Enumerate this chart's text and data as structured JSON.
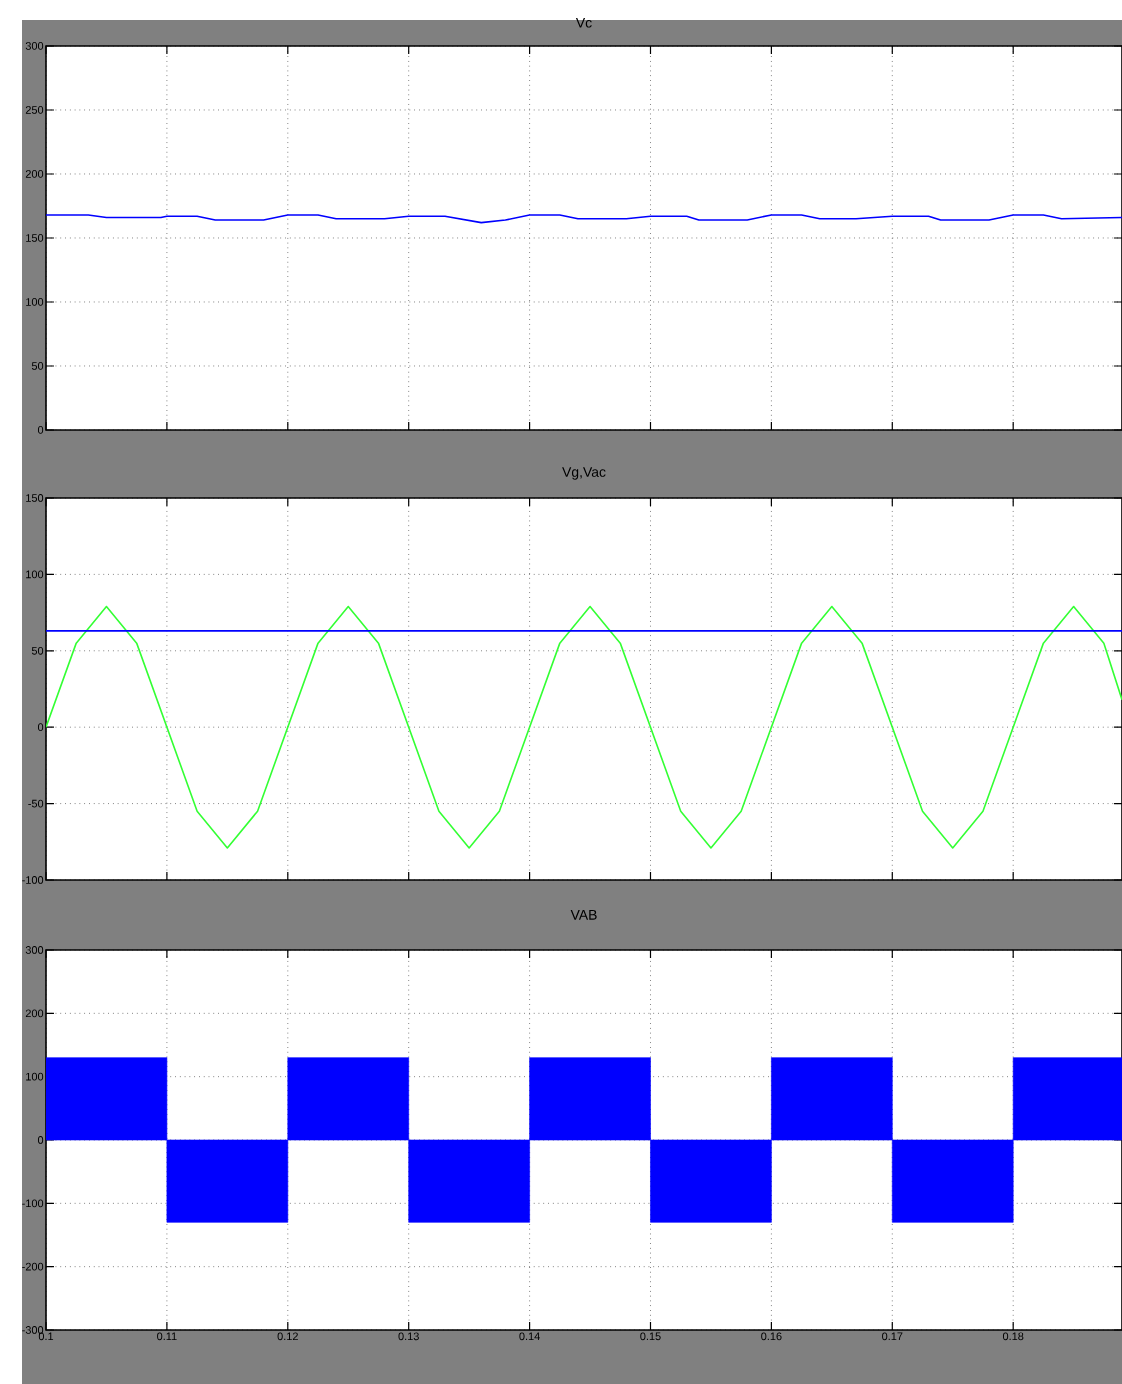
{
  "chart_data": [
    {
      "type": "line",
      "title": "Vc",
      "xlim": [
        0.1,
        0.189
      ],
      "xticks": [
        0.1,
        0.11,
        0.12,
        0.13,
        0.14,
        0.15,
        0.16,
        0.17,
        0.18
      ],
      "ylim": [
        0,
        300
      ],
      "yticks": [
        0,
        50,
        100,
        150,
        200,
        250,
        300
      ],
      "grid": true,
      "tick_labels": "y",
      "series": [
        {
          "color": "#0000ff",
          "x": [
            0.1,
            0.1035,
            0.105,
            0.1095,
            0.11,
            0.1125,
            0.114,
            0.118,
            0.12,
            0.1225,
            0.124,
            0.128,
            0.13,
            0.133,
            0.136,
            0.138,
            0.14,
            0.1425,
            0.144,
            0.148,
            0.15,
            0.153,
            0.154,
            0.158,
            0.16,
            0.1625,
            0.164,
            0.167,
            0.17,
            0.173,
            0.174,
            0.178,
            0.18,
            0.1825,
            0.184,
            0.189
          ],
          "values": [
            168,
            168,
            166,
            166,
            167,
            167,
            164,
            164,
            168,
            168,
            165,
            165,
            167,
            167,
            162,
            164,
            168,
            168,
            165,
            165,
            167,
            167,
            164,
            164,
            168,
            168,
            165,
            165,
            167,
            167,
            164,
            164,
            168,
            168,
            165,
            166
          ]
        }
      ]
    },
    {
      "type": "line",
      "title": "Vg,Vac",
      "xlim": [
        0.1,
        0.189
      ],
      "xticks": [
        0.1,
        0.11,
        0.12,
        0.13,
        0.14,
        0.15,
        0.16,
        0.17,
        0.18
      ],
      "ylim": [
        -100,
        150
      ],
      "yticks": [
        -100,
        -50,
        0,
        50,
        100,
        150
      ],
      "grid": true,
      "tick_labels": "y",
      "series": [
        {
          "color": "#33ff33",
          "x": [
            0.1,
            0.1025,
            0.105,
            0.1075,
            0.11,
            0.1125,
            0.115,
            0.1175,
            0.12,
            0.1225,
            0.125,
            0.1275,
            0.13,
            0.1325,
            0.135,
            0.1375,
            0.14,
            0.1425,
            0.145,
            0.1475,
            0.15,
            0.1525,
            0.155,
            0.1575,
            0.16,
            0.1625,
            0.165,
            0.1675,
            0.17,
            0.1725,
            0.175,
            0.1775,
            0.18,
            0.1825,
            0.185,
            0.1875,
            0.189
          ],
          "values": [
            0,
            55,
            79,
            55,
            0,
            -55,
            -79,
            -55,
            0,
            55,
            79,
            55,
            0,
            -55,
            -79,
            -55,
            0,
            55,
            79,
            55,
            0,
            -55,
            -79,
            -55,
            0,
            55,
            79,
            55,
            0,
            -55,
            -79,
            -55,
            0,
            55,
            79,
            55,
            18
          ]
        },
        {
          "color": "#0000ff",
          "x": [
            0.1,
            0.189
          ],
          "values": [
            63,
            63
          ]
        }
      ]
    },
    {
      "type": "area",
      "title": "VAB",
      "xlim": [
        0.1,
        0.189
      ],
      "xticks": [
        0.1,
        0.11,
        0.12,
        0.13,
        0.14,
        0.15,
        0.16,
        0.17,
        0.18
      ],
      "ylim": [
        -300,
        300
      ],
      "yticks": [
        -300,
        -200,
        -100,
        0,
        100,
        200,
        300
      ],
      "grid": true,
      "series": [
        {
          "color": "#0000ff",
          "x": [
            0.1,
            0.11,
            0.11,
            0.12,
            0.12,
            0.13,
            0.13,
            0.14,
            0.14,
            0.15,
            0.15,
            0.16,
            0.16,
            0.17,
            0.17,
            0.18,
            0.18,
            0.189
          ],
          "values": [
            130,
            130,
            -130,
            -130,
            130,
            130,
            -130,
            -130,
            130,
            130,
            -130,
            -130,
            130,
            130,
            -130,
            -130,
            130,
            130
          ]
        }
      ]
    }
  ]
}
